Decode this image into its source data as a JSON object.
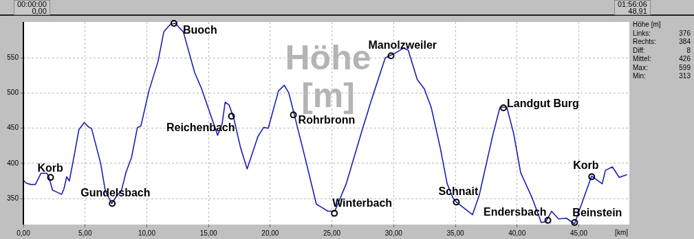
{
  "chart_data": {
    "type": "line",
    "title": "Höhe [m]",
    "xlabel": "[km]",
    "x": [
      0,
      0.22,
      0.6,
      0.97,
      1.43,
      1.9,
      2.08,
      2.36,
      2.73,
      3.1,
      3.29,
      3.51,
      3.72,
      4.03,
      4.5,
      4.93,
      5.33,
      5.52,
      6.26,
      6.64,
      7.16,
      7.57,
      7.94,
      8.31,
      8.77,
      9.24,
      9.52,
      10.17,
      10.91,
      11.38,
      11.93,
      12.3,
      12.96,
      13.88,
      14.44,
      15.74,
      16.1,
      16.35,
      16.67,
      17.05,
      17.6,
      18.13,
      19.0,
      19.46,
      19.84,
      20.67,
      21.14,
      21.51,
      22.07,
      22.81,
      23.74,
      24.12,
      24.67,
      25.23,
      26.16,
      27.46,
      28.2,
      29.32,
      30.06,
      30.81,
      31.18,
      31.92,
      32.48,
      33.04,
      33.78,
      34.34,
      34.8,
      35.08,
      36.39,
      36.94,
      38.06,
      38.62,
      39.17,
      39.73,
      40.29,
      41.22,
      41.96,
      42.33,
      42.8,
      43.36,
      44.0,
      44.66,
      45.49,
      46.05,
      46.43,
      46.9,
      47.16,
      47.72,
      48.28,
      48.91
    ],
    "series": [
      {
        "color": "#1c1cb4",
        "values": [
          376,
          372,
          370,
          370,
          386,
          386,
          380,
          362,
          359,
          356,
          364,
          381,
          375,
          403,
          448,
          458,
          451,
          450,
          400,
          361,
          343,
          354,
          361,
          387,
          409,
          451,
          453,
          503,
          545,
          587,
          598,
          599,
          587,
          529,
          506,
          440,
          456,
          487,
          483,
          464,
          422,
          392,
          438,
          451,
          450,
          503,
          511,
          500,
          461,
          409,
          342,
          338,
          332,
          332,
          371,
          448,
          490,
          550,
          556,
          564,
          561,
          519,
          506,
          480,
          422,
          371,
          351,
          345,
          327,
          355,
          442,
          480,
          480,
          442,
          387,
          351,
          316,
          317,
          332,
          321,
          322,
          314,
          355,
          382,
          377,
          371,
          390,
          395,
          380,
          384
        ]
      }
    ],
    "xlim": [
      0,
      49.1
    ],
    "ylim": [
      313,
      601
    ],
    "xticks": [
      {
        "value": 0,
        "label": "0,00"
      },
      {
        "value": 5,
        "label": "5,00"
      },
      {
        "value": 10,
        "label": "10,00"
      },
      {
        "value": 15,
        "label": "15,00"
      },
      {
        "value": 20,
        "label": "20,00"
      },
      {
        "value": 25,
        "label": "25,00"
      },
      {
        "value": 30,
        "label": "30,00"
      },
      {
        "value": 35,
        "label": "35,00"
      },
      {
        "value": 40,
        "label": "40,00"
      },
      {
        "value": 45,
        "label": "45,00"
      }
    ],
    "yticks": [
      350,
      400,
      450,
      500,
      550
    ],
    "grid": true,
    "legend": false,
    "marker": "none",
    "line_style": "solid",
    "annotations": [
      "00:00:00\n0,00",
      "01:56:06\n48,91",
      "Höhe [m]\nLinks: 376\nRechts: 384\nDiff: 8\nMittel: 426\nMax: 599\nMin: 313",
      {
        "text": "Korb",
        "x": 2.2,
        "y": 380
      },
      {
        "text": "Gundelsbach",
        "x": 7.2,
        "y": 343
      },
      {
        "text": "Buoch",
        "x": 12.2,
        "y": 599
      },
      {
        "text": "Reichenbach",
        "x": 16.86,
        "y": 467
      },
      {
        "text": "Rohrbronn",
        "x": 21.88,
        "y": 469
      },
      {
        "text": "Winterbach",
        "x": 25.2,
        "y": 329
      },
      {
        "text": "Manolzweiler",
        "x": 29.79,
        "y": 553
      },
      {
        "text": "Schnait",
        "x": 35.08,
        "y": 345
      },
      {
        "text": "Landgut Burg",
        "x": 38.9,
        "y": 479
      },
      {
        "text": "Endersbach",
        "x": 42.5,
        "y": 319
      },
      {
        "text": "Beinstein",
        "x": 44.66,
        "y": 316
      },
      {
        "text": "Korb",
        "x": 46.05,
        "y": 381
      }
    ]
  }
}
